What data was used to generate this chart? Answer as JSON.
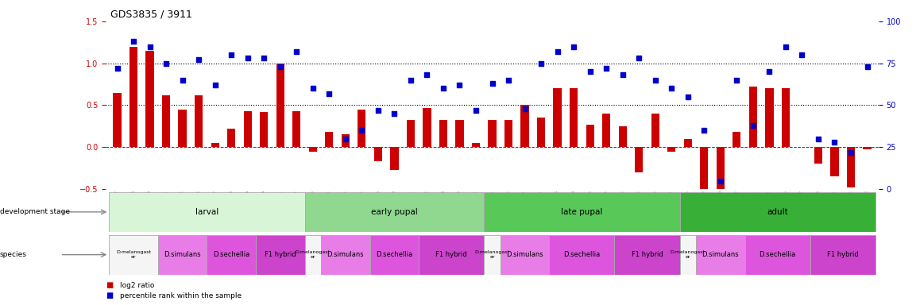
{
  "title": "GDS3835 / 3911",
  "samples": [
    "GSM435987",
    "GSM436078",
    "GSM436079",
    "GSM436091",
    "GSM436092",
    "GSM436093",
    "GSM436827",
    "GSM436828",
    "GSM436829",
    "GSM436839",
    "GSM436841",
    "GSM436842",
    "GSM436080",
    "GSM436083",
    "GSM436084",
    "GSM436095",
    "GSM436096",
    "GSM436830",
    "GSM436831",
    "GSM436832",
    "GSM436848",
    "GSM436850",
    "GSM436852",
    "GSM436085",
    "GSM436086",
    "GSM436087",
    "GSM136097",
    "GSM436098",
    "GSM436099",
    "GSM436833",
    "GSM436834",
    "GSM436835",
    "GSM436854",
    "GSM436856",
    "GSM436857",
    "GSM436088",
    "GSM436089",
    "GSM436090",
    "GSM436100",
    "GSM436101",
    "GSM436102",
    "GSM436836",
    "GSM436837",
    "GSM436838",
    "GSM437041",
    "GSM437091",
    "GSM437092"
  ],
  "log2_ratio": [
    0.65,
    1.2,
    1.15,
    0.62,
    0.45,
    0.62,
    0.05,
    0.22,
    0.43,
    0.42,
    1.0,
    0.43,
    -0.05,
    0.18,
    0.15,
    0.45,
    -0.17,
    -0.27,
    0.32,
    0.47,
    0.32,
    0.32,
    0.05,
    0.32,
    0.32,
    0.5,
    0.35,
    0.7,
    0.7,
    0.27,
    0.4,
    0.25,
    -0.3,
    0.4,
    -0.05,
    0.1,
    -0.55,
    -0.7,
    0.18,
    0.72,
    0.7,
    0.7,
    0.0,
    -0.2,
    -0.35,
    -0.48,
    -0.03
  ],
  "percentile": [
    72,
    88,
    85,
    75,
    65,
    77,
    62,
    80,
    78,
    78,
    73,
    82,
    60,
    57,
    30,
    35,
    47,
    45,
    65,
    68,
    60,
    62,
    47,
    63,
    65,
    48,
    75,
    82,
    85,
    70,
    72,
    68,
    78,
    65,
    60,
    55,
    35,
    5,
    65,
    38,
    70,
    85,
    80,
    30,
    28,
    22,
    73
  ],
  "dev_stages": [
    {
      "label": "larval",
      "start": 0,
      "end": 12,
      "color": "#d8f5d8"
    },
    {
      "label": "early pupal",
      "start": 12,
      "end": 23,
      "color": "#90d890"
    },
    {
      "label": "late pupal",
      "start": 23,
      "end": 35,
      "color": "#58c858"
    },
    {
      "label": "adult",
      "start": 35,
      "end": 47,
      "color": "#38b038"
    }
  ],
  "species_groups": [
    {
      "label": "D.melanogast\ner",
      "start": 0,
      "end": 3,
      "color": "#f5f5f5"
    },
    {
      "label": "D.simulans",
      "start": 3,
      "end": 6,
      "color": "#e87de8"
    },
    {
      "label": "D.sechellia",
      "start": 6,
      "end": 9,
      "color": "#dd55dd"
    },
    {
      "label": "F1 hybrid",
      "start": 9,
      "end": 12,
      "color": "#cc44cc"
    },
    {
      "label": "D.melanogast\ner",
      "start": 12,
      "end": 13,
      "color": "#f5f5f5"
    },
    {
      "label": "D.simulans",
      "start": 13,
      "end": 16,
      "color": "#e87de8"
    },
    {
      "label": "D.sechellia",
      "start": 16,
      "end": 19,
      "color": "#dd55dd"
    },
    {
      "label": "F1 hybrid",
      "start": 19,
      "end": 23,
      "color": "#cc44cc"
    },
    {
      "label": "D.melanogast\ner",
      "start": 23,
      "end": 24,
      "color": "#f5f5f5"
    },
    {
      "label": "D.simulans",
      "start": 24,
      "end": 27,
      "color": "#e87de8"
    },
    {
      "label": "D.sechellia",
      "start": 27,
      "end": 31,
      "color": "#dd55dd"
    },
    {
      "label": "F1 hybrid",
      "start": 31,
      "end": 35,
      "color": "#cc44cc"
    },
    {
      "label": "D.melanogast\ner",
      "start": 35,
      "end": 36,
      "color": "#f5f5f5"
    },
    {
      "label": "D.simulans",
      "start": 36,
      "end": 39,
      "color": "#e87de8"
    },
    {
      "label": "D.sechellia",
      "start": 39,
      "end": 43,
      "color": "#dd55dd"
    },
    {
      "label": "F1 hybrid",
      "start": 43,
      "end": 47,
      "color": "#cc44cc"
    }
  ],
  "bar_color": "#cc0000",
  "scatter_color": "#0000cc",
  "ylim_left": [
    -0.5,
    1.5
  ],
  "ylim_right": [
    0,
    100
  ],
  "yticks_left": [
    -0.5,
    0.0,
    0.5,
    1.0,
    1.5
  ],
  "yticks_right": [
    0,
    25,
    50,
    75,
    100
  ],
  "hline_y": [
    0.5,
    1.0
  ],
  "background_color": "#ffffff"
}
